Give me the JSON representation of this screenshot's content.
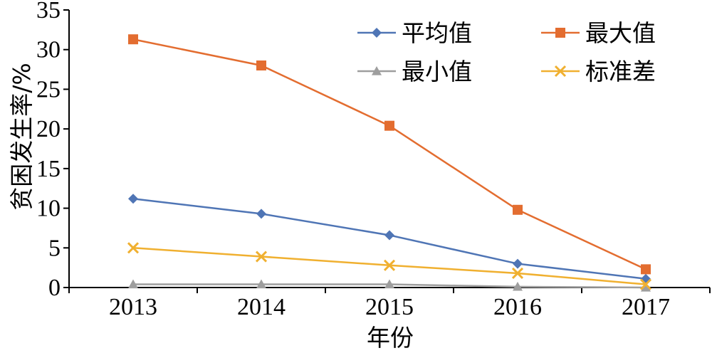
{
  "chart_data": {
    "type": "line",
    "title": "",
    "xlabel": "年份",
    "ylabel": "贫困发生率/%",
    "categories": [
      "2013",
      "2014",
      "2015",
      "2016",
      "2017"
    ],
    "ylim": [
      0,
      35
    ],
    "yticks": [
      0,
      5,
      10,
      15,
      20,
      25,
      30,
      35
    ],
    "grid": false,
    "legend_position": "top-right",
    "series": [
      {
        "name": "平均值",
        "values": [
          11.2,
          9.3,
          6.6,
          3.0,
          1.1
        ],
        "color": "#4f75b5",
        "marker": "diamond"
      },
      {
        "name": "最大值",
        "values": [
          31.3,
          28.0,
          20.4,
          9.8,
          2.3
        ],
        "color": "#e36d30",
        "marker": "square"
      },
      {
        "name": "最小值",
        "values": [
          0.4,
          0.4,
          0.4,
          0.1,
          0.0
        ],
        "color": "#9e9e9e",
        "marker": "triangle"
      },
      {
        "name": "标准差",
        "values": [
          5.0,
          3.9,
          2.8,
          1.8,
          0.4
        ],
        "color": "#f0b030",
        "marker": "x"
      }
    ]
  }
}
